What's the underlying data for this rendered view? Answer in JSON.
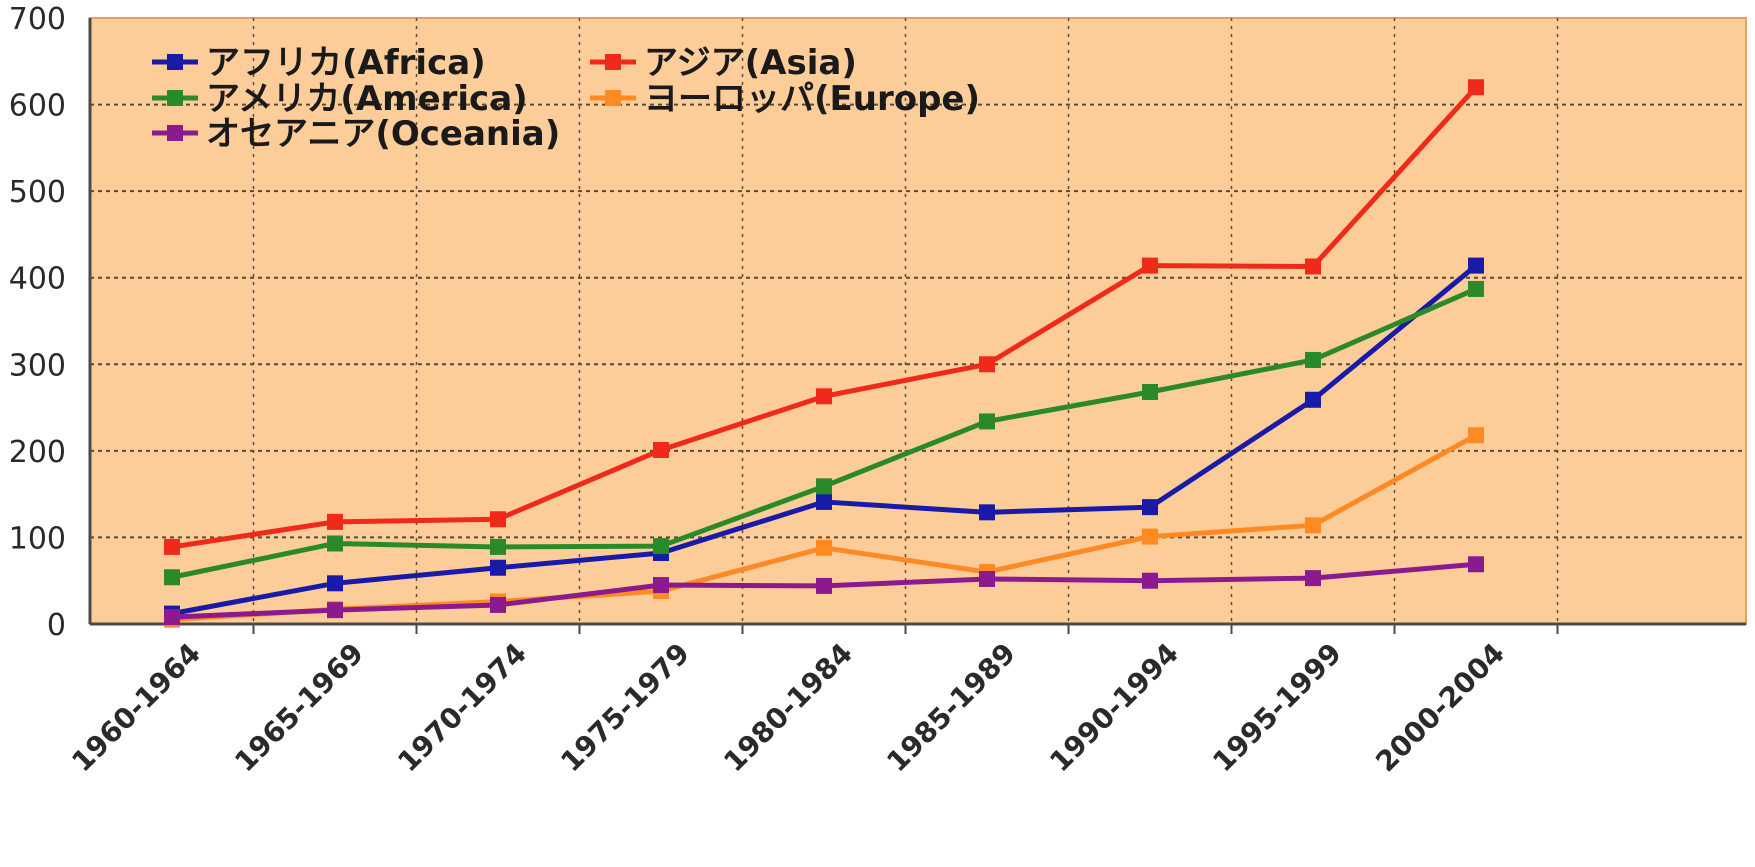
{
  "chart_data": {
    "type": "line",
    "title": "",
    "xlabel": "",
    "ylabel": "",
    "ylim": [
      0,
      700
    ],
    "yticks": [
      0,
      100,
      200,
      300,
      400,
      500,
      600,
      700
    ],
    "grid": true,
    "legend_position": "top-left",
    "categories": [
      "1960-1964",
      "1965-1969",
      "1970-1974",
      "1975-1979",
      "1980-1984",
      "1985-1989",
      "1990-1994",
      "1995-1999",
      "2000-2004"
    ],
    "series": [
      {
        "name": "アフリカ(Africa)",
        "color": "#1a1aa8",
        "values": [
          12,
          47,
          65,
          82,
          141,
          129,
          135,
          259,
          414
        ]
      },
      {
        "name": "アジア(Asia)",
        "color": "#ef2a1a",
        "values": [
          89,
          118,
          121,
          201,
          263,
          300,
          414,
          413,
          620
        ]
      },
      {
        "name": "アメリカ(America)",
        "color": "#2a8a2a",
        "values": [
          54,
          93,
          89,
          90,
          159,
          234,
          268,
          305,
          387
        ]
      },
      {
        "name": "ヨーロッパ(Europe)",
        "color": "#ff8a24",
        "values": [
          5,
          17,
          26,
          38,
          88,
          60,
          101,
          114,
          218
        ]
      },
      {
        "name": "オセアニア(Oceania)",
        "color": "#8a1a8e",
        "values": [
          8,
          16,
          22,
          45,
          44,
          52,
          50,
          53,
          69
        ]
      }
    ],
    "colors": {
      "plot_background": "#fdcd99",
      "grid": "#5a4a36",
      "axis": "#4a4a4a"
    }
  }
}
